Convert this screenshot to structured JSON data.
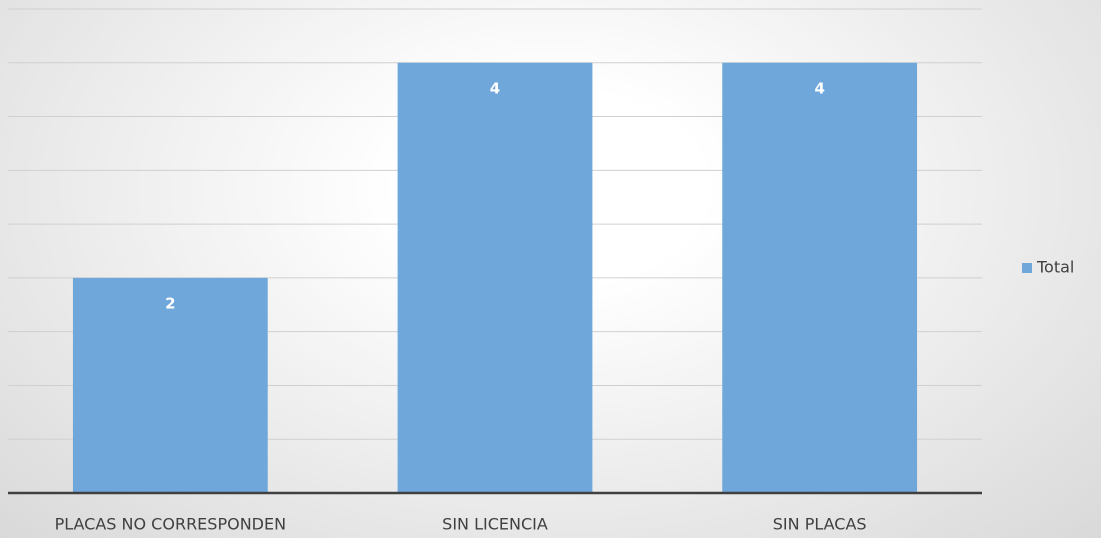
{
  "chart_data": {
    "type": "bar",
    "categories": [
      "PLACAS NO CORRESPONDEN",
      "SIN LICENCIA",
      "SIN PLACAS"
    ],
    "series": [
      {
        "name": "Total",
        "color": "#6fa7db",
        "values": [
          2,
          4,
          4
        ]
      }
    ],
    "ylim": [
      0,
      4.5
    ],
    "yticks": [
      0,
      0.5,
      1,
      1.5,
      2,
      2.5,
      3,
      3.5,
      4,
      4.5
    ],
    "grid": true,
    "legend": "right"
  }
}
